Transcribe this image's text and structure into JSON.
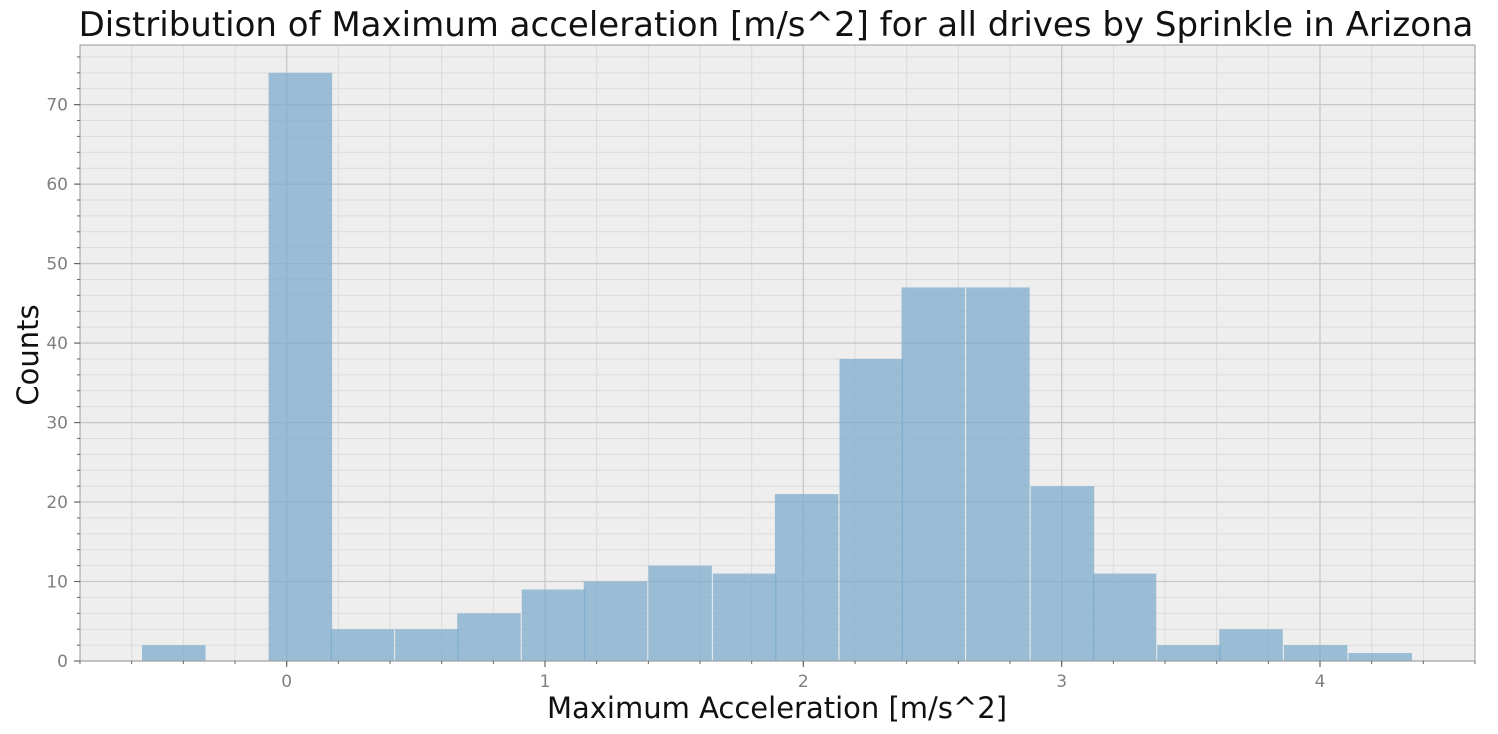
{
  "chart_data": {
    "type": "bar",
    "title": "Distribution of Maximum acceleration [m/s^2] for all drives by Sprinkle in Arizona",
    "xlabel": "Maximum Acceleration [m/s^2]",
    "ylabel": "Counts",
    "xlim": [
      -0.8,
      4.6
    ],
    "ylim": [
      0,
      77.5
    ],
    "xticks": [
      0,
      1,
      2,
      3,
      4
    ],
    "yticks": [
      0,
      10,
      20,
      30,
      40,
      50,
      60,
      70
    ],
    "bin_width": 0.246,
    "bins": [
      {
        "x0": -0.56,
        "count": 2
      },
      {
        "x0": -0.07,
        "count": 74
      },
      {
        "x0": 0.17,
        "count": 4
      },
      {
        "x0": 0.42,
        "count": 4
      },
      {
        "x0": 0.66,
        "count": 6
      },
      {
        "x0": 0.91,
        "count": 9
      },
      {
        "x0": 1.15,
        "count": 10
      },
      {
        "x0": 1.4,
        "count": 12
      },
      {
        "x0": 1.65,
        "count": 11
      },
      {
        "x0": 1.89,
        "count": 21
      },
      {
        "x0": 2.14,
        "count": 38
      },
      {
        "x0": 2.38,
        "count": 47
      },
      {
        "x0": 2.63,
        "count": 47
      },
      {
        "x0": 2.88,
        "count": 22
      },
      {
        "x0": 3.12,
        "count": 11
      },
      {
        "x0": 3.37,
        "count": 2
      },
      {
        "x0": 3.61,
        "count": 4
      },
      {
        "x0": 3.86,
        "count": 2
      },
      {
        "x0": 4.11,
        "count": 1
      }
    ],
    "grid": true,
    "legend": "none",
    "colors": {
      "bar": "#7aaacc",
      "plot_background": "#eeeeee",
      "grid_major": "#c8c8c8",
      "grid_minor": "#dcdcdc",
      "tick_text": "#808080"
    }
  }
}
